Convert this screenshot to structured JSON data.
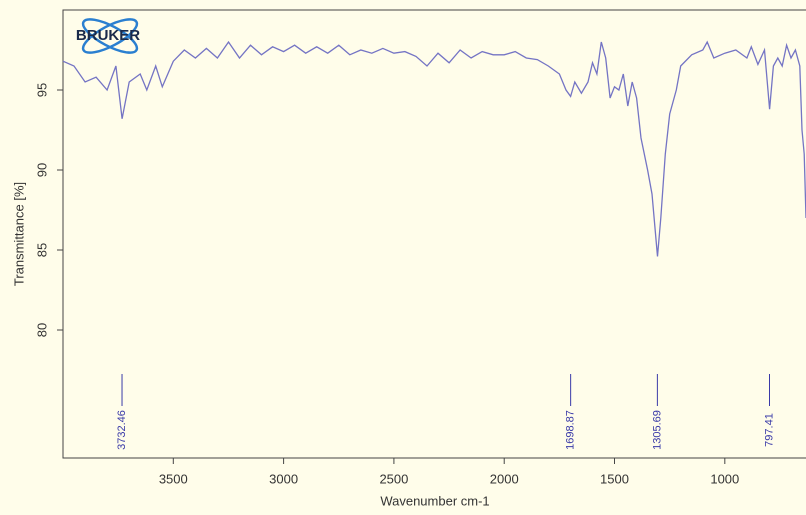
{
  "logo": "BRUKER",
  "chart_data": {
    "type": "line",
    "x_label": "Wavenumber cm-1",
    "y_label": "Transmittance [%]",
    "x": [
      4000,
      3950,
      3900,
      3850,
      3800,
      3760,
      3732,
      3700,
      3650,
      3620,
      3580,
      3550,
      3500,
      3450,
      3400,
      3350,
      3300,
      3250,
      3200,
      3150,
      3100,
      3050,
      3000,
      2950,
      2900,
      2850,
      2800,
      2750,
      2700,
      2650,
      2600,
      2550,
      2500,
      2450,
      2400,
      2350,
      2300,
      2250,
      2200,
      2150,
      2100,
      2050,
      2000,
      1950,
      1900,
      1850,
      1800,
      1750,
      1720,
      1699,
      1680,
      1650,
      1620,
      1600,
      1580,
      1560,
      1540,
      1520,
      1500,
      1480,
      1460,
      1440,
      1420,
      1400,
      1380,
      1350,
      1330,
      1305,
      1290,
      1270,
      1250,
      1220,
      1200,
      1150,
      1100,
      1080,
      1050,
      1000,
      950,
      900,
      880,
      850,
      820,
      797,
      780,
      760,
      740,
      720,
      700,
      680,
      660,
      650,
      640,
      632
    ],
    "values": [
      96.8,
      96.5,
      95.5,
      95.8,
      95.0,
      96.5,
      93.2,
      95.5,
      96.0,
      95.0,
      96.5,
      95.2,
      96.8,
      97.5,
      97.0,
      97.6,
      97.0,
      98.0,
      97.0,
      97.8,
      97.2,
      97.7,
      97.4,
      97.8,
      97.3,
      97.7,
      97.3,
      97.8,
      97.2,
      97.5,
      97.3,
      97.6,
      97.3,
      97.4,
      97.1,
      96.5,
      97.3,
      96.7,
      97.5,
      97.0,
      97.4,
      97.2,
      97.2,
      97.4,
      97.0,
      96.9,
      96.5,
      96.0,
      95.0,
      94.6,
      95.5,
      94.8,
      95.5,
      96.7,
      96.0,
      98.0,
      97.0,
      94.5,
      95.2,
      95.0,
      96.0,
      94.0,
      95.5,
      94.5,
      92.0,
      90.0,
      88.5,
      84.6,
      87.0,
      91.0,
      93.5,
      95.0,
      96.5,
      97.2,
      97.5,
      98.0,
      97.0,
      97.3,
      97.5,
      97.0,
      97.7,
      96.6,
      97.5,
      93.8,
      96.5,
      97.0,
      96.5,
      97.8,
      97.0,
      97.5,
      96.5,
      92.5,
      91.0,
      87.0
    ],
    "color": "#7474c4",
    "xlim": [
      4000,
      632
    ],
    "ylim": [
      72,
      100
    ],
    "xticks": [
      3500,
      3000,
      2500,
      2000,
      1500,
      1000
    ],
    "yticks": [
      80,
      85,
      90,
      95
    ],
    "peaks": [
      3732.46,
      1698.87,
      1305.69,
      797.41
    ],
    "peak_color": "#3a3aa8"
  }
}
